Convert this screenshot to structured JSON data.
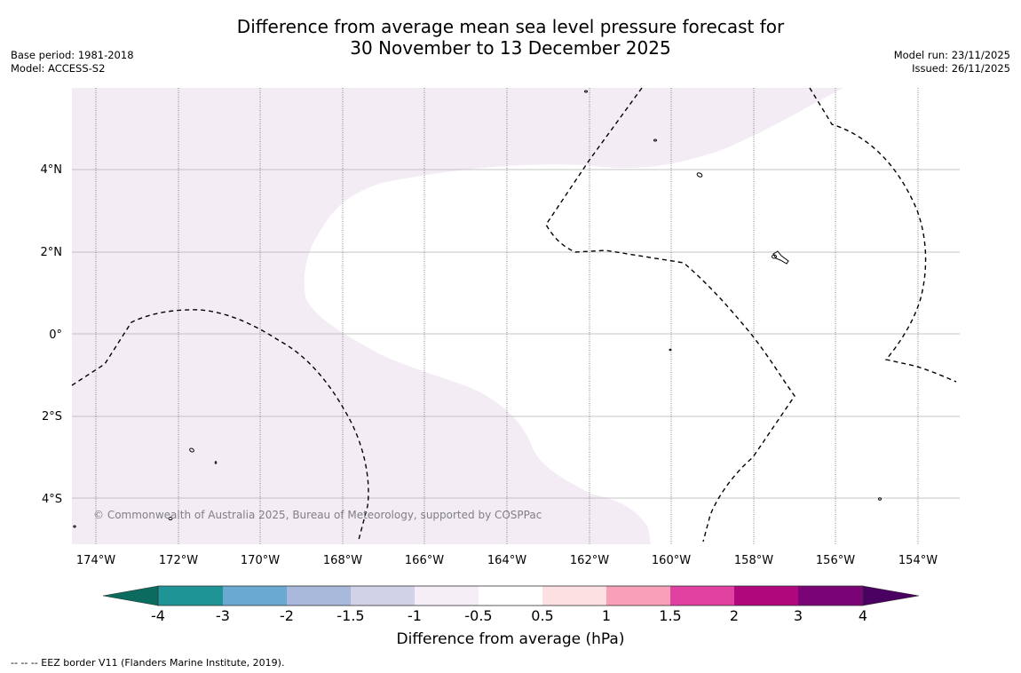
{
  "title": {
    "line1": "Difference from average mean sea level pressure forecast for",
    "line2": "30 November to 13 December 2025"
  },
  "meta": {
    "base_period": "Base period: 1981-2018",
    "model": "Model: ACCESS-S2",
    "model_run": "Model run: 23/11/2025",
    "issued": "Issued: 26/11/2025"
  },
  "map": {
    "lat_labels": [
      "4°N",
      "2°N",
      "0°",
      "2°S",
      "4°S"
    ],
    "lon_labels": [
      "174°W",
      "172°W",
      "170°W",
      "168°W",
      "166°W",
      "164°W",
      "162°W",
      "160°W",
      "158°W",
      "156°W",
      "154°W"
    ],
    "copyright": "© Commonwealth of Australia 2025, Bureau of Meteorology, supported by COSPPac",
    "shade_color": "#f3ecf5",
    "grid_color": "#b0b0b0"
  },
  "colorbar": {
    "labels": [
      "-4",
      "-3",
      "-2",
      "-1.5",
      "-1",
      "-0.5",
      "0.5",
      "1",
      "1.5",
      "2",
      "3",
      "4"
    ],
    "colors": [
      "#0b6b5e",
      "#1f9496",
      "#6aa9d2",
      "#a8b9dc",
      "#d1d1e8",
      "#f5eef7",
      "#ffffff",
      "#fde0e2",
      "#f7a0b8",
      "#e040a0",
      "#b0087c",
      "#7a0476",
      "#4a0060"
    ],
    "title": "Difference from average (hPa)"
  },
  "footnote": "--  --  -- EEZ border V11 (Flanders Marine Institute, 2019)."
}
